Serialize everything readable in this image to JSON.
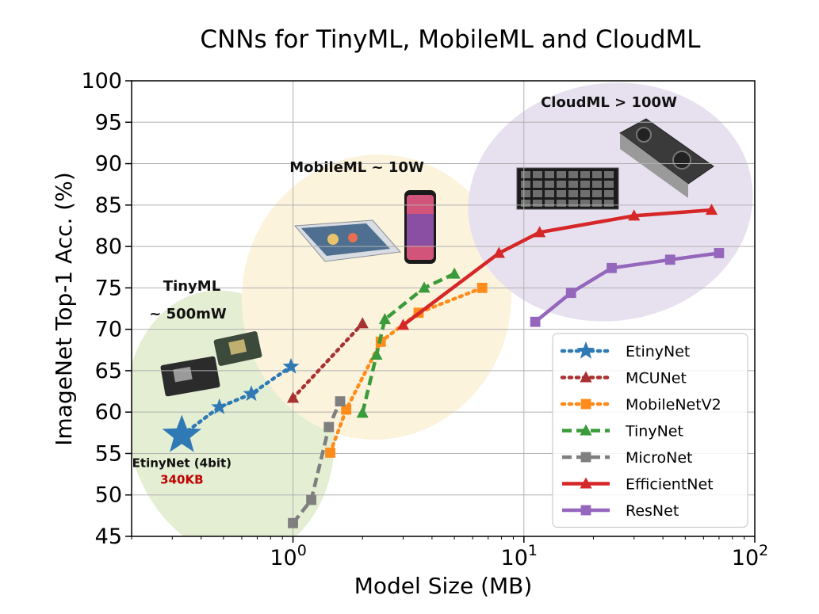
{
  "chart_data": {
    "type": "line",
    "title": "CNNs for TinyML, MobileML and CloudML",
    "xlabel": "Model Size (MB)",
    "ylabel": "ImageNet Top-1 Acc. (%)",
    "xscale": "log",
    "xlim": [
      0.2,
      100
    ],
    "ylim": [
      45,
      100
    ],
    "y_ticks": [
      "45",
      "50",
      "55",
      "60",
      "65",
      "70",
      "75",
      "80",
      "85",
      "90",
      "95",
      "100"
    ],
    "x_ticks": [
      {
        "value": 1,
        "base": "10",
        "exp": "0"
      },
      {
        "value": 10,
        "base": "10",
        "exp": "1"
      },
      {
        "value": 100,
        "base": "10",
        "exp": "2"
      }
    ],
    "grid": true,
    "legend_position": "bottom-right",
    "regions": [
      {
        "name": "TinyML",
        "label_lines": [
          "TinyML",
          "~ 500mW"
        ],
        "color": "#e3eed3"
      },
      {
        "name": "MobileML",
        "label_lines": [
          "MobileML ~ 10W"
        ],
        "color": "#fcf3dc"
      },
      {
        "name": "CloudML",
        "label_lines": [
          "CloudML > 100W"
        ],
        "color": "#e7e1ef"
      }
    ],
    "highlight": {
      "x": 0.33,
      "y": 57.2,
      "label": "EtinyNet (4bit)",
      "sublabel": "340KB",
      "sublabel_color": "#c00000"
    },
    "series": [
      {
        "name": "EtinyNet",
        "color": "#2f7ab5",
        "dash": "dotted",
        "marker": "star",
        "points": [
          [
            0.33,
            57.2
          ],
          [
            0.48,
            60.6
          ],
          [
            0.66,
            62.2
          ],
          [
            0.98,
            65.5
          ]
        ]
      },
      {
        "name": "MCUNet",
        "color": "#a83232",
        "dash": "dotted",
        "marker": "triangle",
        "points": [
          [
            1.0,
            61.7
          ],
          [
            2.0,
            70.7
          ]
        ]
      },
      {
        "name": "MobileNetV2",
        "color": "#ff8c1a",
        "dash": "dotted",
        "marker": "square",
        "points": [
          [
            1.45,
            55.1
          ],
          [
            1.7,
            60.3
          ],
          [
            2.4,
            68.5
          ],
          [
            3.5,
            72.0
          ],
          [
            6.6,
            75.0
          ]
        ]
      },
      {
        "name": "TinyNet",
        "color": "#3a9b3a",
        "dash": "dashed",
        "marker": "triangle",
        "points": [
          [
            2.0,
            59.9
          ],
          [
            2.3,
            66.9
          ],
          [
            2.5,
            71.2
          ],
          [
            3.7,
            75.0
          ],
          [
            5.0,
            76.7
          ]
        ]
      },
      {
        "name": "MicroNet",
        "color": "#7f7f7f",
        "dash": "dashed",
        "marker": "square",
        "points": [
          [
            1.0,
            46.6
          ],
          [
            1.2,
            49.4
          ],
          [
            1.43,
            58.2
          ],
          [
            1.6,
            61.3
          ]
        ]
      },
      {
        "name": "EfficientNet",
        "color": "#d62728",
        "dash": "solid",
        "marker": "triangle",
        "points": [
          [
            3.0,
            70.5
          ],
          [
            7.8,
            79.2
          ],
          [
            11.7,
            81.7
          ],
          [
            30.0,
            83.7
          ],
          [
            65.0,
            84.4
          ]
        ]
      },
      {
        "name": "ResNet",
        "color": "#9467bd",
        "dash": "solid",
        "marker": "square",
        "points": [
          [
            11.2,
            70.9
          ],
          [
            16.0,
            74.4
          ],
          [
            24.0,
            77.4
          ],
          [
            43.0,
            78.4
          ],
          [
            70.0,
            79.2
          ]
        ]
      }
    ]
  }
}
